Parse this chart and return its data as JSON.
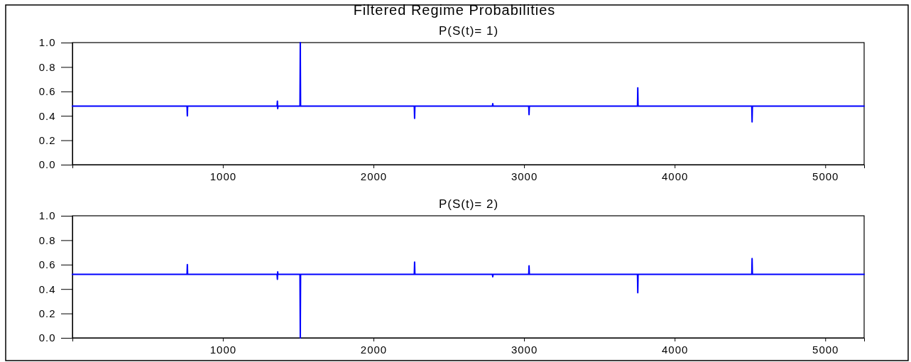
{
  "chart_data": [
    {
      "type": "line",
      "title": "Filtered Regime Probabilities",
      "subtitle": "P(S(t)= 1)",
      "xlim": [
        1,
        5258
      ],
      "xticks": [
        1000,
        2000,
        3000,
        4000,
        5000
      ],
      "ylim": [
        0,
        1
      ],
      "yticks": [
        {
          "value": 0,
          "label": "0.0"
        },
        {
          "value": 0.2,
          "label": "0.2"
        },
        {
          "value": 0.4,
          "label": "0.4"
        },
        {
          "value": 0.6,
          "label": "0.6"
        },
        {
          "value": 0.8,
          "label": "0.8"
        },
        {
          "value": 1,
          "label": "1.0"
        }
      ],
      "grid": false,
      "series": [
        {
          "color": "#0000ff",
          "x": [
            1,
            762,
            764,
            766,
            1360,
            1362,
            1364,
            1366,
            1512,
            1514,
            1516,
            2271,
            2273,
            2275,
            2790,
            2792,
            2794,
            3031,
            3033,
            3035,
            3753,
            3755,
            3757,
            4512,
            4514,
            4516,
            5258
          ],
          "values": [
            0.48,
            0.48,
            0.4,
            0.48,
            0.48,
            0.52,
            0.46,
            0.48,
            0.48,
            1.0,
            0.48,
            0.48,
            0.38,
            0.48,
            0.48,
            0.5,
            0.48,
            0.48,
            0.41,
            0.48,
            0.48,
            0.63,
            0.48,
            0.48,
            0.35,
            0.48,
            0.48
          ]
        }
      ]
    },
    {
      "type": "line",
      "subtitle": "P(S(t)= 2)",
      "xlim": [
        1,
        5258
      ],
      "xticks": [
        1000,
        2000,
        3000,
        4000,
        5000
      ],
      "ylim": [
        0,
        1
      ],
      "yticks": [
        {
          "value": 0,
          "label": "0.0"
        },
        {
          "value": 0.2,
          "label": "0.2"
        },
        {
          "value": 0.4,
          "label": "0.4"
        },
        {
          "value": 0.6,
          "label": "0.6"
        },
        {
          "value": 0.8,
          "label": "0.8"
        },
        {
          "value": 1,
          "label": "1.0"
        }
      ],
      "grid": false,
      "series": [
        {
          "color": "#0000ff",
          "x": [
            1,
            762,
            764,
            766,
            1360,
            1362,
            1364,
            1366,
            1512,
            1514,
            1516,
            2271,
            2273,
            2275,
            2790,
            2792,
            2794,
            3031,
            3033,
            3035,
            3753,
            3755,
            3757,
            4512,
            4514,
            4516,
            5258
          ],
          "values": [
            0.52,
            0.52,
            0.6,
            0.52,
            0.52,
            0.48,
            0.54,
            0.52,
            0.52,
            0.0,
            0.52,
            0.52,
            0.62,
            0.52,
            0.52,
            0.5,
            0.52,
            0.52,
            0.59,
            0.52,
            0.52,
            0.37,
            0.52,
            0.52,
            0.65,
            0.52,
            0.52
          ]
        }
      ]
    }
  ]
}
